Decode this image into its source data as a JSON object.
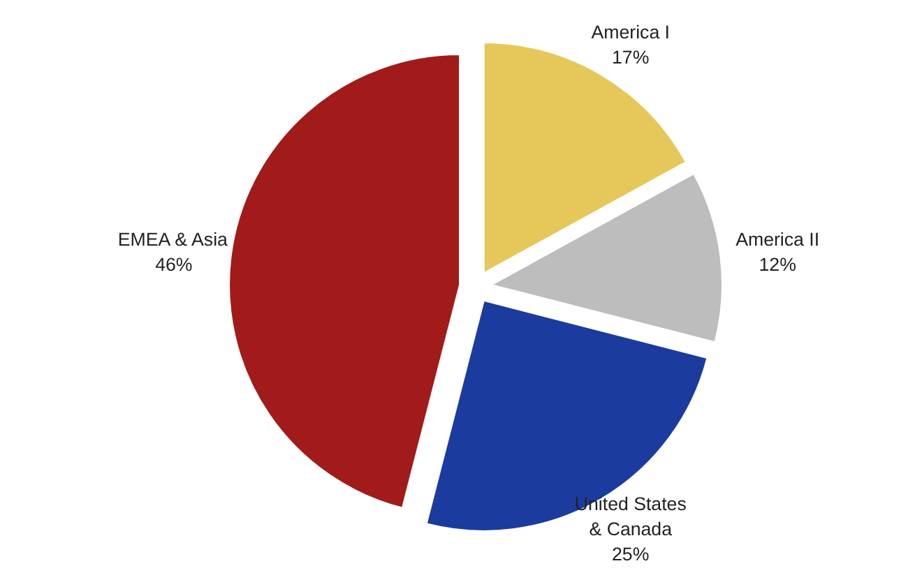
{
  "chart_data": {
    "type": "pie",
    "categories": [
      "America I",
      "America II",
      "United States & Canada",
      "EMEA & Asia"
    ],
    "values": [
      17,
      12,
      25,
      46
    ],
    "colors": [
      "#e6c85a",
      "#bdbdbd",
      "#1c3b9e",
      "#a11b1b"
    ],
    "value_labels": [
      "17%",
      "12%",
      "25%",
      "46%"
    ]
  }
}
